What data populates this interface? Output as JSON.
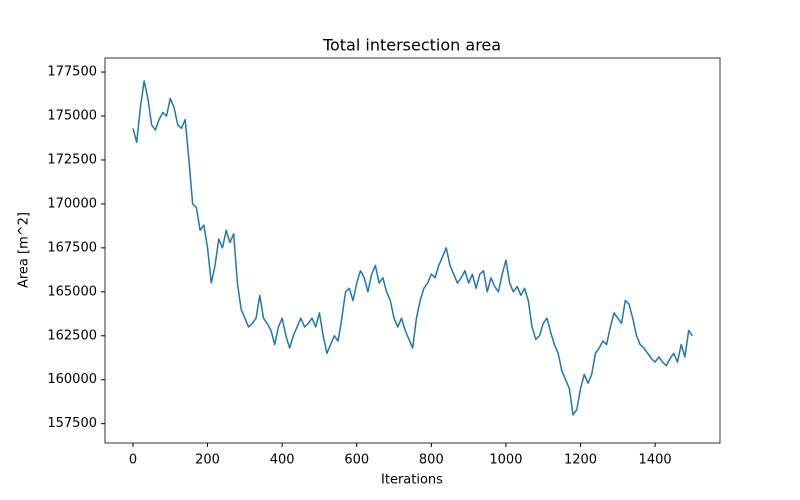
{
  "chart_data": {
    "type": "line",
    "title": "Total intersection area",
    "x_label": "Iterations",
    "y_label": "Area [m^2]",
    "x": [
      0,
      10,
      20,
      30,
      40,
      50,
      60,
      70,
      80,
      90,
      100,
      110,
      120,
      130,
      140,
      150,
      160,
      170,
      180,
      190,
      200,
      210,
      220,
      230,
      240,
      250,
      260,
      270,
      280,
      290,
      300,
      310,
      320,
      330,
      340,
      350,
      360,
      370,
      380,
      390,
      400,
      410,
      420,
      430,
      440,
      450,
      460,
      470,
      480,
      490,
      500,
      510,
      520,
      530,
      540,
      550,
      560,
      570,
      580,
      590,
      600,
      610,
      620,
      630,
      640,
      650,
      660,
      670,
      680,
      690,
      700,
      710,
      720,
      730,
      740,
      750,
      760,
      770,
      780,
      790,
      800,
      810,
      820,
      830,
      840,
      850,
      860,
      870,
      880,
      890,
      900,
      910,
      920,
      930,
      940,
      950,
      960,
      970,
      980,
      990,
      1000,
      1010,
      1020,
      1030,
      1040,
      1050,
      1060,
      1070,
      1080,
      1090,
      1100,
      1110,
      1120,
      1130,
      1140,
      1150,
      1160,
      1170,
      1180,
      1190,
      1200,
      1210,
      1220,
      1230,
      1240,
      1250,
      1260,
      1270,
      1280,
      1290,
      1300,
      1310,
      1320,
      1330,
      1340,
      1350,
      1360,
      1370,
      1380,
      1390,
      1400,
      1410,
      1420,
      1430,
      1440,
      1450,
      1460,
      1470,
      1480,
      1490,
      1500
    ],
    "series": [
      {
        "name": "Total intersection area",
        "color": "#1f77b4",
        "values": [
          174300,
          173500,
          175500,
          177000,
          176000,
          174500,
          174200,
          174800,
          175200,
          175000,
          176000,
          175500,
          174500,
          174300,
          174800,
          172500,
          170000,
          169800,
          168500,
          168800,
          167500,
          165500,
          166500,
          168000,
          167500,
          168500,
          167800,
          168300,
          165500,
          164000,
          163500,
          163000,
          163200,
          163500,
          164800,
          163500,
          163200,
          162800,
          162000,
          163000,
          163500,
          162500,
          161800,
          162500,
          163000,
          163500,
          163000,
          163200,
          163500,
          163000,
          163800,
          162500,
          161500,
          162000,
          162500,
          162200,
          163500,
          165000,
          165200,
          164500,
          165500,
          166200,
          165800,
          165000,
          166000,
          166500,
          165500,
          165800,
          165000,
          164500,
          163500,
          163000,
          163500,
          162800,
          162300,
          161800,
          163500,
          164500,
          165200,
          165500,
          166000,
          165800,
          166500,
          167000,
          167500,
          166500,
          166000,
          165500,
          165800,
          166200,
          165500,
          166000,
          165200,
          166000,
          166200,
          165000,
          165800,
          165300,
          165000,
          166000,
          166800,
          165500,
          165000,
          165300,
          164800,
          165200,
          164500,
          163000,
          162300,
          162500,
          163200,
          163500,
          162700,
          162000,
          161500,
          160500,
          160000,
          159500,
          158000,
          158300,
          159500,
          160300,
          159800,
          160300,
          161500,
          161800,
          162200,
          162000,
          163000,
          163800,
          163500,
          163200,
          164500,
          164300,
          163500,
          162500,
          162000,
          161800,
          161500,
          161200,
          161000,
          161300,
          161000,
          160800,
          161200,
          161500,
          161000,
          162000,
          161300,
          162800,
          162500
        ]
      }
    ],
    "xlim": [
      -75,
      1574
    ],
    "ylim": [
      156400,
      178300
    ],
    "xticks": [
      0,
      200,
      400,
      600,
      800,
      1000,
      1200,
      1400
    ],
    "yticks": [
      157500,
      160000,
      162500,
      165000,
      167500,
      170000,
      172500,
      175000,
      177500
    ],
    "grid": false
  }
}
